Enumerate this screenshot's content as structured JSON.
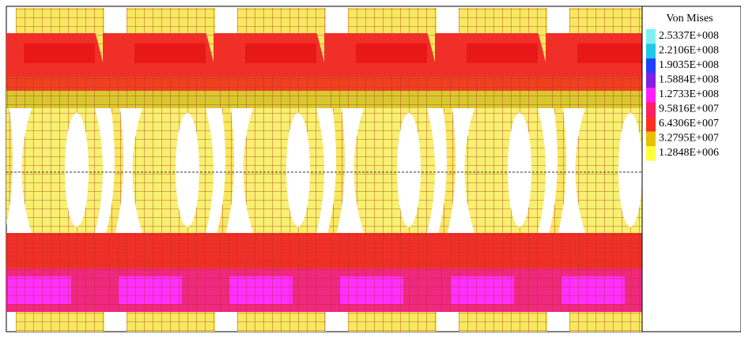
{
  "legend": {
    "title": "Von Mises",
    "entries": [
      {
        "label": "2.5337E+008",
        "color": "#7ff0f0"
      },
      {
        "label": "2.2106E+008",
        "color": "#20c8e8"
      },
      {
        "label": "1.9035E+008",
        "color": "#2040ff"
      },
      {
        "label": "1.5884E+008",
        "color": "#8020e0"
      },
      {
        "label": "1.2733E+008",
        "color": "#ff20ff"
      },
      {
        "label": "9.5816E+007",
        "color": "#ff2060"
      },
      {
        "label": "6.4306E+007",
        "color": "#ff3020"
      },
      {
        "label": "3.2795E+007",
        "color": "#e8c000"
      },
      {
        "label": "1.2848E+006",
        "color": "#ffff40"
      }
    ]
  }
}
